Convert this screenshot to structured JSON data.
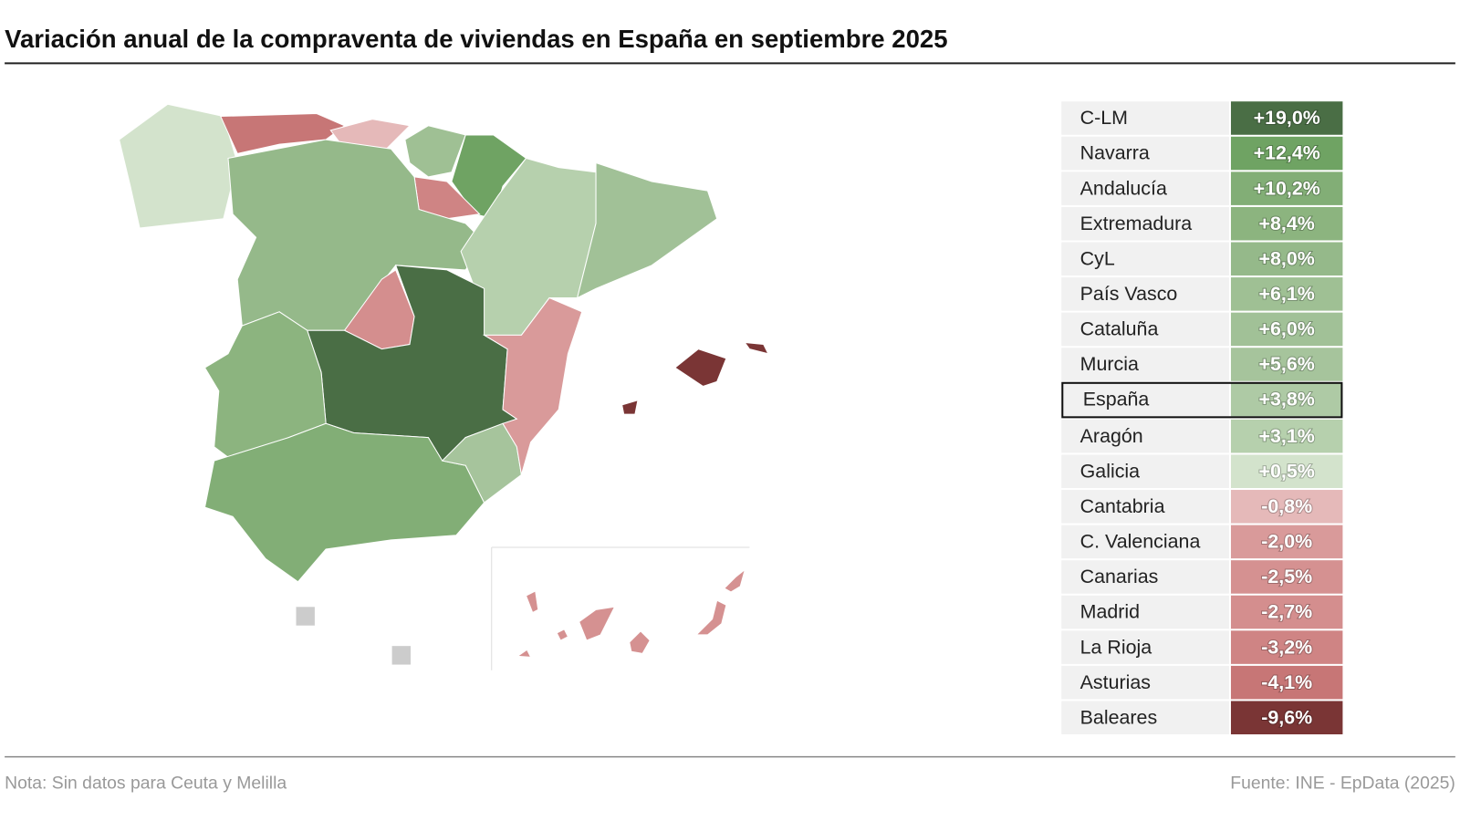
{
  "header": {
    "title": "Variación anual de la compraventa de viviendas en España en septiembre 2025"
  },
  "table": {
    "rows": [
      {
        "name": "C-LM",
        "value": 19.0,
        "value_label": "+19,0%",
        "color": "#4a6e45"
      },
      {
        "name": "Navarra",
        "value": 12.4,
        "value_label": "+12,4%",
        "color": "#6fa363"
      },
      {
        "name": "Andalucía",
        "value": 10.2,
        "value_label": "+10,2%",
        "color": "#82ae76"
      },
      {
        "name": "Extremadura",
        "value": 8.4,
        "value_label": "+8,4%",
        "color": "#8cb47f"
      },
      {
        "name": "CyL",
        "value": 8.0,
        "value_label": "+8,0%",
        "color": "#95b98a"
      },
      {
        "name": "País Vasco",
        "value": 6.1,
        "value_label": "+6,1%",
        "color": "#9fc094"
      },
      {
        "name": "Cataluña",
        "value": 6.0,
        "value_label": "+6,0%",
        "color": "#a1c197"
      },
      {
        "name": "Murcia",
        "value": 5.6,
        "value_label": "+5,6%",
        "color": "#a6c49c"
      },
      {
        "name": "España",
        "value": 3.8,
        "value_label": "+3,8%",
        "color": "#aecaa5"
      },
      {
        "name": "Aragón",
        "value": 3.1,
        "value_label": "+3,1%",
        "color": "#b6d0ad"
      },
      {
        "name": "Galicia",
        "value": 0.5,
        "value_label": "+0,5%",
        "color": "#d3e3cc"
      },
      {
        "name": "Cantabria",
        "value": -0.8,
        "value_label": "-0,8%",
        "color": "#e5b9b9"
      },
      {
        "name": "C. Valenciana",
        "value": -2.0,
        "value_label": "-2,0%",
        "color": "#d99a9a"
      },
      {
        "name": "Canarias",
        "value": -2.5,
        "value_label": "-2,5%",
        "color": "#d59191"
      },
      {
        "name": "Madrid",
        "value": -2.7,
        "value_label": "-2,7%",
        "color": "#d48e8e"
      },
      {
        "name": "La Rioja",
        "value": -3.2,
        "value_label": "-3,2%",
        "color": "#cf8484"
      },
      {
        "name": "Asturias",
        "value": -4.1,
        "value_label": "-4,1%",
        "color": "#c77676"
      },
      {
        "name": "Baleares",
        "value": -9.6,
        "value_label": "-9,6%",
        "color": "#7a3535"
      }
    ]
  },
  "footer": {
    "note": "Nota: Sin datos para Ceuta y Melilla",
    "source": "Fuente: INE - EpData (2025)"
  }
}
